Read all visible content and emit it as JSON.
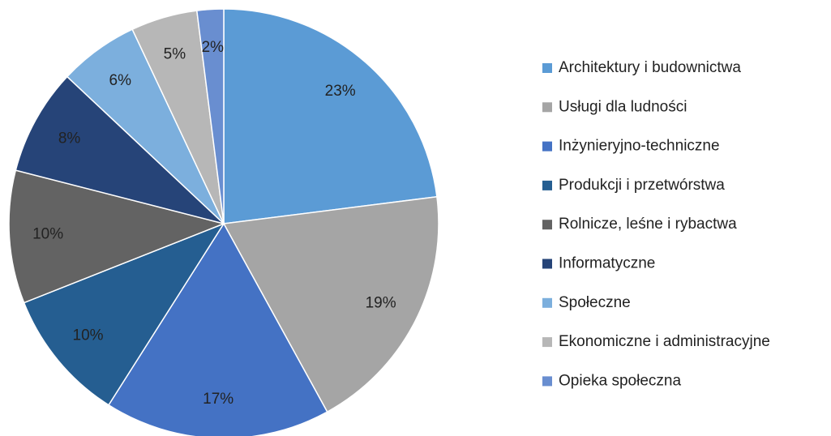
{
  "chart_data": {
    "type": "pie",
    "categories": [
      "Architektury i budownictwa",
      "Usługi dla ludności",
      "Inżynieryjno-techniczne",
      "Produkcji i przetwórstwa",
      "Rolnicze, leśne i rybactwa",
      "Informatyczne",
      "Społeczne",
      "Ekonomiczne i administracyjne",
      "Opieka społeczna"
    ],
    "values": [
      23,
      19,
      17,
      10,
      10,
      8,
      6,
      5,
      2
    ],
    "value_labels": [
      "23%",
      "19%",
      "17%",
      "10%",
      "10%",
      "8%",
      "6%",
      "5%",
      "2%"
    ],
    "colors": [
      "#5b9bd5",
      "#a5a5a5",
      "#4472c4",
      "#255e91",
      "#636363",
      "#264478",
      "#7cafdd",
      "#b7b7b7",
      "#698ed0"
    ],
    "legend": "right"
  }
}
